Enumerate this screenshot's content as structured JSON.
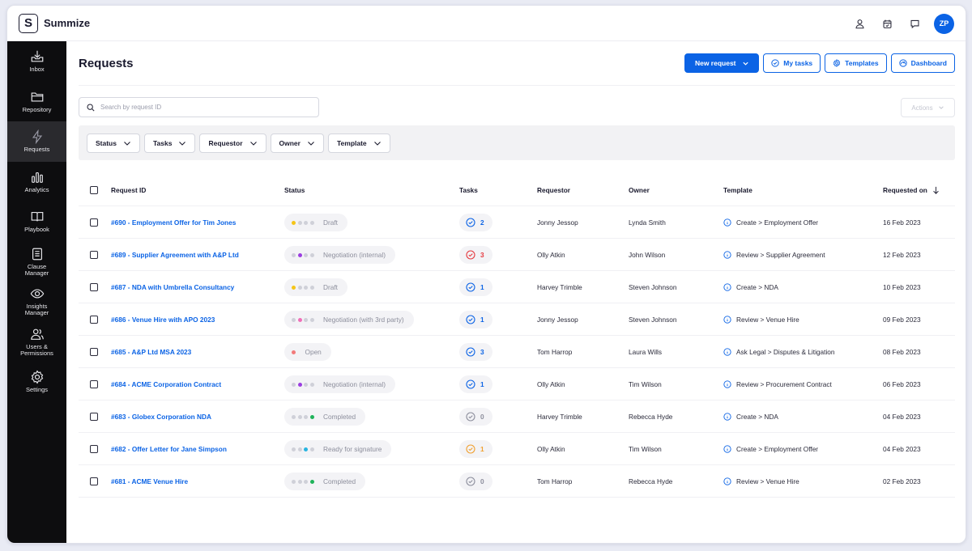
{
  "app": {
    "name": "Summize",
    "logo_letter": "S",
    "user_initials": "ZP"
  },
  "top_icons": [
    "user-icon",
    "calendar-icon",
    "chat-icon"
  ],
  "sidebar": {
    "items": [
      {
        "label": "Inbox",
        "icon": "inbox-icon",
        "active": false
      },
      {
        "label": "Repository",
        "icon": "folder-icon",
        "active": false
      },
      {
        "label": "Requests",
        "icon": "lightning-icon",
        "active": true
      },
      {
        "label": "Analytics",
        "icon": "bar-chart-icon",
        "active": false
      },
      {
        "label": "Playbook",
        "icon": "book-icon",
        "active": false
      },
      {
        "label": "Clause Manager",
        "icon": "document-icon",
        "active": false
      },
      {
        "label": "Insights Manager",
        "icon": "eye-icon",
        "active": false
      },
      {
        "label": "Users & Permissions",
        "icon": "users-icon",
        "active": false
      },
      {
        "label": "Settings",
        "icon": "gear-icon",
        "active": false
      }
    ]
  },
  "header": {
    "title": "Requests",
    "new_request": "New request",
    "my_tasks": "My tasks",
    "templates": "Templates",
    "dashboard": "Dashboard"
  },
  "search": {
    "placeholder": "Search by request ID"
  },
  "actions_label": "Actions",
  "filters": [
    "Status",
    "Tasks",
    "Requestor",
    "Owner",
    "Template"
  ],
  "table": {
    "columns": {
      "id": "Request ID",
      "status": "Status",
      "tasks": "Tasks",
      "requestor": "Requestor",
      "owner": "Owner",
      "template": "Template",
      "requested_on": "Requested on"
    },
    "rows": [
      {
        "id": "#690 - Employment Offer for Tim Jones",
        "status": "Draft",
        "status_stage": 1,
        "stage_color": "#f5c518",
        "tasks": "2",
        "task_color": "#0b63e5",
        "requestor": "Jonny Jessop",
        "owner": "Lynda Smith",
        "template": "Create > Employment Offer",
        "date": "16 Feb 2023"
      },
      {
        "id": "#689 - Supplier Agreement with A&P Ltd",
        "status": "Negotiation (internal)",
        "status_stage": 2,
        "stage_color": "#9b3ee0",
        "tasks": "3",
        "task_color": "#e5393f",
        "requestor": "Olly Atkin",
        "owner": "John Wilson",
        "template": "Review > Supplier Agreement",
        "date": "12 Feb 2023"
      },
      {
        "id": "#687 - NDA with Umbrella Consultancy",
        "status": "Draft",
        "status_stage": 1,
        "stage_color": "#f5c518",
        "tasks": "1",
        "task_color": "#0b63e5",
        "requestor": "Harvey Trimble",
        "owner": "Steven Johnson",
        "template": "Create > NDA",
        "date": "10 Feb 2023"
      },
      {
        "id": "#686 - Venue Hire with APO 2023",
        "status": "Negotiation (with 3rd party)",
        "status_stage": 2,
        "stage_color": "#f06fb8",
        "tasks": "1",
        "task_color": "#0b63e5",
        "requestor": "Jonny Jessop",
        "owner": "Steven Johnson",
        "template": "Review > Venue Hire",
        "date": "09 Feb 2023"
      },
      {
        "id": "#685 - A&P Ltd MSA 2023",
        "status": "Open",
        "status_stage": 0,
        "stage_color": "#f27a7a",
        "tasks": "3",
        "task_color": "#0b63e5",
        "requestor": "Tom Harrop",
        "owner": "Laura Wills",
        "template": "Ask Legal > Disputes & Litigation",
        "date": "08 Feb 2023"
      },
      {
        "id": "#684 - ACME Corporation Contract",
        "status": "Negotiation (internal)",
        "status_stage": 2,
        "stage_color": "#9b3ee0",
        "tasks": "1",
        "task_color": "#0b63e5",
        "requestor": "Olly Atkin",
        "owner": "Tim Wilson",
        "template": "Review > Procurement Contract",
        "date": "06 Feb 2023"
      },
      {
        "id": "#683 - Globex Corporation NDA",
        "status": "Completed",
        "status_stage": 4,
        "stage_color": "#1fb35a",
        "tasks": "0",
        "task_color": "#8c8e9c",
        "requestor": "Harvey Trimble",
        "owner": "Rebecca Hyde",
        "template": "Create > NDA",
        "date": "04 Feb 2023"
      },
      {
        "id": "#682 - Offer Letter for Jane Simpson",
        "status": "Ready for signature",
        "status_stage": 3,
        "stage_color": "#28b4e0",
        "tasks": "1",
        "task_color": "#f0a030",
        "requestor": "Olly Atkin",
        "owner": "Tim Wilson",
        "template": "Create > Employment Offer",
        "date": "04 Feb 2023"
      },
      {
        "id": "#681 - ACME Venue Hire",
        "status": "Completed",
        "status_stage": 4,
        "stage_color": "#1fb35a",
        "tasks": "0",
        "task_color": "#8c8e9c",
        "requestor": "Tom Harrop",
        "owner": "Rebecca Hyde",
        "template": "Review > Venue Hire",
        "date": "02 Feb 2023"
      }
    ]
  },
  "colors": {
    "accent": "#0b63e5",
    "sidebar_bg": "#0d0d0f",
    "sidebar_active": "#2a2a2e"
  }
}
